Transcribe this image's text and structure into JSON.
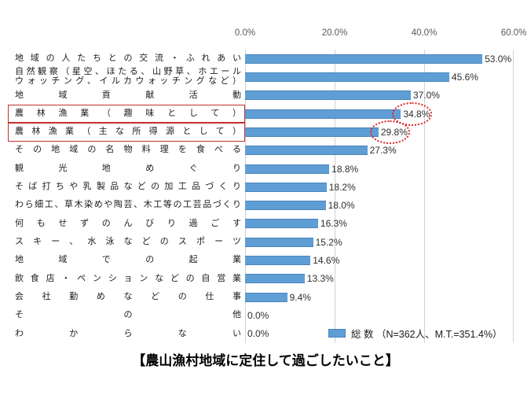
{
  "chart_data": {
    "type": "bar",
    "orientation": "horizontal",
    "title": "【農山漁村地域に定住して過ごしたいこと】",
    "legend": {
      "swatch_color": "#5f9dd5",
      "label": "総 数 （N=362人、M.T.=351.4%）"
    },
    "axis": {
      "x_ticks": [
        "0.0%",
        "20.0%",
        "40.0%",
        "60.0%"
      ],
      "xlim": [
        0,
        60
      ],
      "grid": true
    },
    "bar_color": "#5f9dd5",
    "annotation_color": "#e01f1f",
    "rows": [
      {
        "label": "地域の人たちとの交流・ふれあい",
        "label_lines": [
          "地域の人たちとの交流・ふれあい"
        ],
        "value": 53.0,
        "value_label": "53.0%",
        "highlighted": false
      },
      {
        "label": "自然観察（星空、ほたる、山野草、ホエールウォッチング、イルカウォッチングなど）",
        "label_lines": [
          "自然観察（星空、ほたる、山野草、ホエール",
          "ウォッチング、イルカウォッチングなど）"
        ],
        "value": 45.6,
        "value_label": "45.6%",
        "highlighted": false
      },
      {
        "label": "地域貢献活動",
        "label_lines": [
          "地域貢献活動"
        ],
        "value": 37.0,
        "value_label": "37.0%",
        "highlighted": false
      },
      {
        "label": "農林漁業（趣味として）",
        "label_lines": [
          "農林漁業（趣味として）"
        ],
        "value": 34.8,
        "value_label": "34.8%",
        "highlighted": true
      },
      {
        "label": "農林漁業（主な所得源として）",
        "label_lines": [
          "農林漁業（主な所得源として）"
        ],
        "value": 29.8,
        "value_label": "29.8%",
        "highlighted": true
      },
      {
        "label": "その地域の名物料理を食べる",
        "label_lines": [
          "その地域の名物料理を食べる"
        ],
        "value": 27.3,
        "value_label": "27.3%",
        "highlighted": false
      },
      {
        "label": "観光地めぐり",
        "label_lines": [
          "観光地めぐり"
        ],
        "value": 18.8,
        "value_label": "18.8%",
        "highlighted": false
      },
      {
        "label": "そば打ちや乳製品などの加工品づくり",
        "label_lines": [
          "そば打ちや乳製品などの加工品づくり"
        ],
        "value": 18.2,
        "value_label": "18.2%",
        "highlighted": false
      },
      {
        "label": "わら細工、草木染めや陶芸、木工等の工芸品づくり",
        "label_lines": [
          "わら細工、草木染めや陶芸、木工等の工芸品づくり"
        ],
        "value": 18.0,
        "value_label": "18.0%",
        "highlighted": false
      },
      {
        "label": "何もせずのんびり過ごす",
        "label_lines": [
          "何もせずのんびり過ごす"
        ],
        "value": 16.3,
        "value_label": "16.3%",
        "highlighted": false
      },
      {
        "label": "スキー、水泳などのスポーツ",
        "label_lines": [
          "スキー、水泳などのスポーツ"
        ],
        "value": 15.2,
        "value_label": "15.2%",
        "highlighted": false
      },
      {
        "label": "地域での起業",
        "label_lines": [
          "地域での起業"
        ],
        "value": 14.6,
        "value_label": "14.6%",
        "highlighted": false
      },
      {
        "label": "飲食店・ペンションなどの自営業",
        "label_lines": [
          "飲食店・ペンションなどの自営業"
        ],
        "value": 13.3,
        "value_label": "13.3%",
        "highlighted": false
      },
      {
        "label": "会社勤めなどの仕事",
        "label_lines": [
          "会社勤めなどの仕事"
        ],
        "value": 9.4,
        "value_label": "9.4%",
        "highlighted": false
      },
      {
        "label": "その他",
        "label_lines": [
          "その他"
        ],
        "value": 0.0,
        "value_label": "0.0%",
        "highlighted": false
      },
      {
        "label": "わからない",
        "label_lines": [
          "わからない"
        ],
        "value": 0.0,
        "value_label": "0.0%",
        "highlighted": false
      }
    ]
  }
}
